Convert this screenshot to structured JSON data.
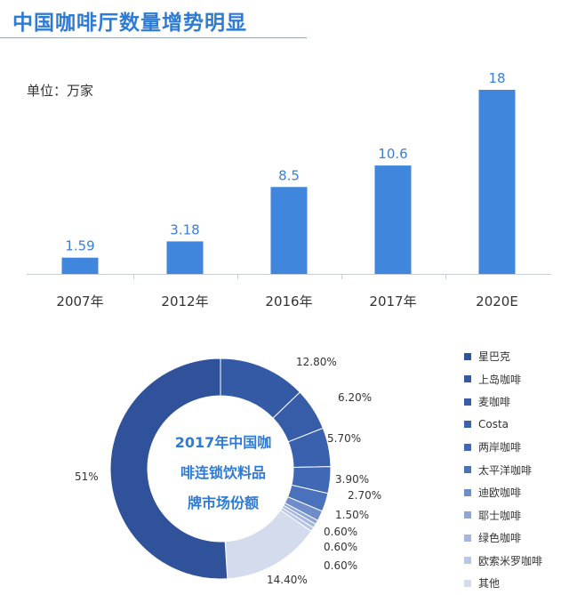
{
  "page": {
    "title": "中国咖啡厅数量增势明显",
    "unit_label": "单位：万家"
  },
  "chart_data": [
    {
      "type": "bar",
      "title": "中国咖啡厅数量增势明显",
      "ylabel": "单位：万家",
      "categories": [
        "2007年",
        "2012年",
        "2016年",
        "2017年",
        "2020E"
      ],
      "values": [
        1.59,
        3.18,
        8.5,
        10.6,
        18
      ],
      "value_labels": [
        "1.59",
        "3.18",
        "8.5",
        "10.6",
        "18"
      ],
      "ylim": [
        0,
        18
      ],
      "grid": false,
      "color": "#3f86dc"
    },
    {
      "type": "pie",
      "variant": "donut",
      "title": "2017年中国咖啡连锁饮料品牌市场份额",
      "center_label_lines": [
        "2017年中国咖",
        "啡连锁饮料品",
        "牌市场份额"
      ],
      "legend_position": "right",
      "slices": [
        {
          "name": "星巴克",
          "value": 51,
          "label": "51%",
          "color": "#2f529a"
        },
        {
          "name": "上岛咖啡",
          "value": 12.8,
          "label": "12.80%",
          "color": "#3459a5"
        },
        {
          "name": "麦咖啡",
          "value": 6.2,
          "label": "6.20%",
          "color": "#375da9"
        },
        {
          "name": "Costa",
          "value": 5.7,
          "label": "5.70%",
          "color": "#3a61ae"
        },
        {
          "name": "两岸咖啡",
          "value": 3.9,
          "label": "3.90%",
          "color": "#4168b4"
        },
        {
          "name": "太平洋咖啡",
          "value": 2.7,
          "label": "2.70%",
          "color": "#4a72bc"
        },
        {
          "name": "迪欧咖啡",
          "value": 1.5,
          "label": "1.50%",
          "color": "#6f8dca"
        },
        {
          "name": "耶士咖啡",
          "value": 0.6,
          "label": "0.60%",
          "color": "#8ea6d6"
        },
        {
          "name": "绿色咖啡",
          "value": 0.6,
          "label": "0.60%",
          "color": "#a5b7de"
        },
        {
          "name": "欧索米罗咖啡",
          "value": 0.6,
          "label": "0.60%",
          "color": "#b9c7e6"
        },
        {
          "name": "其他",
          "value": 14.4,
          "label": "14.40%",
          "color": "#d4dbed"
        }
      ]
    }
  ]
}
